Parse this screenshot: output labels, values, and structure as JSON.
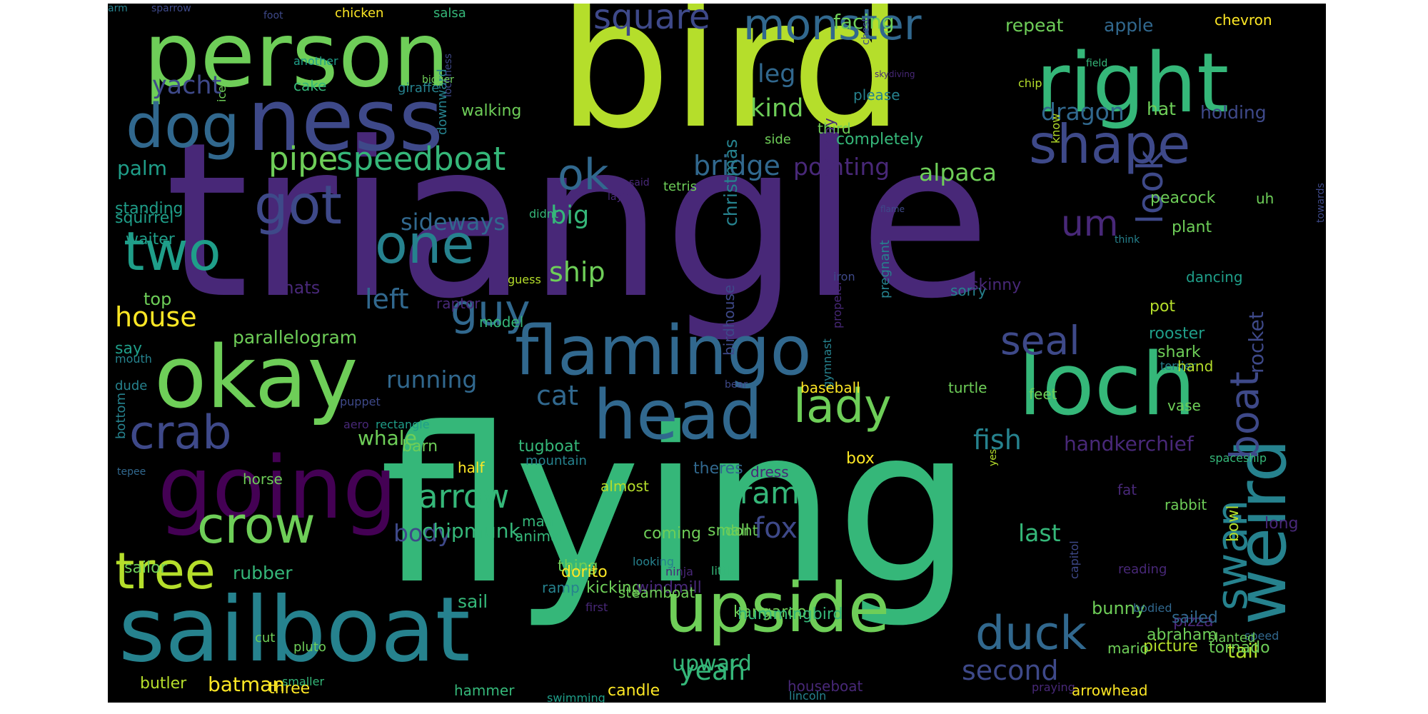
{
  "background": "#000000",
  "palette": {
    "deep_purple": "#440154",
    "purple": "#482878",
    "indigo": "#3e4989",
    "blue": "#31688e",
    "teal_blue": "#26828e",
    "teal": "#1f9e89",
    "green_teal": "#35b779",
    "green": "#6ece58",
    "lime": "#b5de2b",
    "yellow": "#fde725"
  },
  "words": [
    {
      "text": "triangle",
      "color": "#482878"
    },
    {
      "text": "bird",
      "color": "#b5de2b"
    },
    {
      "text": "flying",
      "color": "#35b779"
    },
    {
      "text": "sailboat",
      "color": "#26828e"
    },
    {
      "text": "person",
      "color": "#6ece58"
    },
    {
      "text": "ness",
      "color": "#3e4989"
    },
    {
      "text": "right",
      "color": "#35b779"
    },
    {
      "text": "okay",
      "color": "#6ece58"
    },
    {
      "text": "loch",
      "color": "#35b779"
    },
    {
      "text": "going",
      "color": "#440154"
    },
    {
      "text": "flamingo",
      "color": "#31688e"
    },
    {
      "text": "upside",
      "color": "#6ece58"
    },
    {
      "text": "head",
      "color": "#31688e"
    },
    {
      "text": "weird",
      "color": "#26828e"
    },
    {
      "text": "dog",
      "color": "#31688e"
    },
    {
      "text": "monster",
      "color": "#31688e"
    },
    {
      "text": "square",
      "color": "#3e4989"
    },
    {
      "text": "shape",
      "color": "#3e4989"
    },
    {
      "text": "got",
      "color": "#3e4989"
    },
    {
      "text": "one",
      "color": "#26828e"
    },
    {
      "text": "two",
      "color": "#1f9e89"
    },
    {
      "text": "guy",
      "color": "#31688e"
    },
    {
      "text": "crow",
      "color": "#6ece58"
    },
    {
      "text": "tree",
      "color": "#b5de2b"
    },
    {
      "text": "crab",
      "color": "#3e4989"
    },
    {
      "text": "lady",
      "color": "#6ece58"
    },
    {
      "text": "duck",
      "color": "#31688e"
    },
    {
      "text": "seal",
      "color": "#3e4989"
    },
    {
      "text": "swan",
      "color": "#26828e"
    },
    {
      "text": "boat",
      "color": "#3e4989"
    },
    {
      "text": "look",
      "color": "#3e4989"
    },
    {
      "text": "um",
      "color": "#482878"
    },
    {
      "text": "ok",
      "color": "#31688e"
    },
    {
      "text": "speedboat",
      "color": "#35b779"
    },
    {
      "text": "pipe",
      "color": "#6ece58"
    },
    {
      "text": "house",
      "color": "#fde725"
    },
    {
      "text": "arrow",
      "color": "#35b779"
    },
    {
      "text": "fish",
      "color": "#26828e"
    },
    {
      "text": "yacht",
      "color": "#3e4989"
    },
    {
      "text": "dragon",
      "color": "#31688e"
    },
    {
      "text": "bridge",
      "color": "#31688e"
    },
    {
      "text": "pointing",
      "color": "#482878"
    },
    {
      "text": "alpaca",
      "color": "#6ece58"
    },
    {
      "text": "leg",
      "color": "#31688e"
    },
    {
      "text": "kind",
      "color": "#6ece58"
    },
    {
      "text": "big",
      "color": "#35b779"
    },
    {
      "text": "left",
      "color": "#31688e"
    },
    {
      "text": "ship",
      "color": "#6ece58"
    },
    {
      "text": "sideways",
      "color": "#31688e"
    },
    {
      "text": "cat",
      "color": "#31688e"
    },
    {
      "text": "running",
      "color": "#31688e"
    },
    {
      "text": "palm",
      "color": "#1f9e89"
    },
    {
      "text": "parallelogram",
      "color": "#6ece58"
    },
    {
      "text": "whale",
      "color": "#6ece58"
    },
    {
      "text": "ram",
      "color": "#35b779"
    },
    {
      "text": "fox",
      "color": "#3e4989"
    },
    {
      "text": "body",
      "color": "#3e4989"
    },
    {
      "text": "chipmunk",
      "color": "#35b779"
    },
    {
      "text": "last",
      "color": "#35b779"
    },
    {
      "text": "handkerchief",
      "color": "#482878"
    },
    {
      "text": "rocket",
      "color": "#3e4989"
    },
    {
      "text": "facing",
      "color": "#6ece58"
    },
    {
      "text": "repeat",
      "color": "#6ece58"
    },
    {
      "text": "apple",
      "color": "#31688e"
    },
    {
      "text": "chevron",
      "color": "#fde725"
    },
    {
      "text": "hat",
      "color": "#6ece58"
    },
    {
      "text": "holding",
      "color": "#3e4989"
    },
    {
      "text": "christmas",
      "color": "#26828e"
    },
    {
      "text": "walking",
      "color": "#6ece58"
    },
    {
      "text": "rubber",
      "color": "#35b779"
    },
    {
      "text": "sail",
      "color": "#35b779"
    },
    {
      "text": "yeah",
      "color": "#35b779"
    },
    {
      "text": "second",
      "color": "#3e4989"
    },
    {
      "text": "upward",
      "color": "#35b779"
    },
    {
      "text": "batman",
      "color": "#fde725"
    },
    {
      "text": "bunny",
      "color": "#6ece58"
    },
    {
      "text": "tail",
      "color": "#b5de2b"
    },
    {
      "text": "half",
      "color": "#fde725"
    },
    {
      "text": "small",
      "color": "#6ece58"
    },
    {
      "text": "dont",
      "color": "#6ece58"
    },
    {
      "text": "coming",
      "color": "#6ece58"
    },
    {
      "text": "thing",
      "color": "#6ece58"
    },
    {
      "text": "kicking",
      "color": "#6ece58"
    },
    {
      "text": "windmill",
      "color": "#482878"
    },
    {
      "text": "kangaroo",
      "color": "#6ece58"
    },
    {
      "text": "hummingbird",
      "color": "#35b779"
    },
    {
      "text": "box",
      "color": "#fde725"
    },
    {
      "text": "barn",
      "color": "#6ece58"
    },
    {
      "text": "tugboat",
      "color": "#35b779"
    },
    {
      "text": "horse",
      "color": "#6ece58"
    },
    {
      "text": "model",
      "color": "#35b779"
    },
    {
      "text": "raptor",
      "color": "#482878"
    },
    {
      "text": "thats",
      "color": "#482878"
    },
    {
      "text": "top",
      "color": "#6ece58"
    },
    {
      "text": "waiter",
      "color": "#1f9e89"
    },
    {
      "text": "standing",
      "color": "#1f9e89"
    },
    {
      "text": "squirrel",
      "color": "#1f9e89"
    },
    {
      "text": "say",
      "color": "#1f9e89"
    },
    {
      "text": "mouth",
      "color": "#26828e"
    },
    {
      "text": "dude",
      "color": "#26828e"
    },
    {
      "text": "bottom",
      "color": "#26828e"
    },
    {
      "text": "tepee",
      "color": "#31688e"
    },
    {
      "text": "sailor",
      "color": "#6ece58"
    },
    {
      "text": "butler",
      "color": "#b5de2b"
    },
    {
      "text": "three",
      "color": "#fde725"
    },
    {
      "text": "smaller",
      "color": "#35b779"
    },
    {
      "text": "hammer",
      "color": "#35b779"
    },
    {
      "text": "candle",
      "color": "#fde725"
    },
    {
      "text": "swimming",
      "color": "#1f9e89"
    },
    {
      "text": "houseboat",
      "color": "#482878"
    },
    {
      "text": "lincoln",
      "color": "#26828e"
    },
    {
      "text": "praying",
      "color": "#482878"
    },
    {
      "text": "arrowhead",
      "color": "#fde725"
    },
    {
      "text": "sparrow",
      "color": "#3e4989"
    },
    {
      "text": "foot",
      "color": "#3e4989"
    },
    {
      "text": "chicken",
      "color": "#fde725"
    },
    {
      "text": "salsa",
      "color": "#35b779"
    },
    {
      "text": "chest",
      "color": "#3e4989"
    },
    {
      "text": "another",
      "color": "#1f9e89"
    },
    {
      "text": "cake",
      "color": "#35b779"
    },
    {
      "text": "giraffe",
      "color": "#26828e"
    },
    {
      "text": "downward",
      "color": "#26828e"
    },
    {
      "text": "lochness",
      "color": "#3e4989"
    },
    {
      "text": "bigger",
      "color": "#6ece58"
    },
    {
      "text": "skydiving",
      "color": "#482878"
    },
    {
      "text": "field",
      "color": "#35b779"
    },
    {
      "text": "please",
      "color": "#26828e"
    },
    {
      "text": "chip",
      "color": "#b5de2b"
    },
    {
      "text": "completely",
      "color": "#35b779"
    },
    {
      "text": "third",
      "color": "#6ece58"
    },
    {
      "text": "know",
      "color": "#b5de2b"
    },
    {
      "text": "side",
      "color": "#6ece58"
    },
    {
      "text": "birthday",
      "color": "#482878"
    },
    {
      "text": "tetris",
      "color": "#6ece58"
    },
    {
      "text": "said",
      "color": "#482878"
    },
    {
      "text": "laying",
      "color": "#482878"
    },
    {
      "text": "didnt",
      "color": "#35b779"
    },
    {
      "text": "guess",
      "color": "#b5de2b"
    },
    {
      "text": "flame",
      "color": "#3e4989"
    },
    {
      "text": "towards",
      "color": "#3e4989"
    },
    {
      "text": "uh",
      "color": "#6ece58"
    },
    {
      "text": "peacock",
      "color": "#6ece58"
    },
    {
      "text": "plant",
      "color": "#6ece58"
    },
    {
      "text": "think",
      "color": "#26828e"
    },
    {
      "text": "dancing",
      "color": "#1f9e89"
    },
    {
      "text": "pot",
      "color": "#b5de2b"
    },
    {
      "text": "sorry",
      "color": "#26828e"
    },
    {
      "text": "skinny",
      "color": "#482878"
    },
    {
      "text": "pregnant",
      "color": "#26828e"
    },
    {
      "text": "iron",
      "color": "#3e4989"
    },
    {
      "text": "propeler",
      "color": "#482878"
    },
    {
      "text": "birdhouse",
      "color": "#3e4989"
    },
    {
      "text": "gymnast",
      "color": "#26828e"
    },
    {
      "text": "rooster",
      "color": "#1f9e89"
    },
    {
      "text": "shark",
      "color": "#6ece58"
    },
    {
      "text": "terrier",
      "color": "#26828e"
    },
    {
      "text": "hand",
      "color": "#b5de2b"
    },
    {
      "text": "bear",
      "color": "#3e4989"
    },
    {
      "text": "baseball",
      "color": "#fde725"
    },
    {
      "text": "turtle",
      "color": "#6ece58"
    },
    {
      "text": "vase",
      "color": "#6ece58"
    },
    {
      "text": "feet",
      "color": "#6ece58"
    },
    {
      "text": "puppet",
      "color": "#3e4989"
    },
    {
      "text": "rectangle",
      "color": "#1f9e89"
    },
    {
      "text": "aero",
      "color": "#482878"
    },
    {
      "text": "dress",
      "color": "#482878"
    },
    {
      "text": "mountain",
      "color": "#26828e"
    },
    {
      "text": "almost",
      "color": "#b5de2b"
    },
    {
      "text": "theres",
      "color": "#31688e"
    },
    {
      "text": "spaceship",
      "color": "#35b779"
    },
    {
      "text": "yes",
      "color": "#b5de2b"
    },
    {
      "text": "fat",
      "color": "#482878"
    },
    {
      "text": "rabbit",
      "color": "#6ece58"
    },
    {
      "text": "bowl",
      "color": "#b5de2b"
    },
    {
      "text": "long",
      "color": "#482878"
    },
    {
      "text": "man",
      "color": "#35b779"
    },
    {
      "text": "animal",
      "color": "#35b779"
    },
    {
      "text": "looking",
      "color": "#26828e"
    },
    {
      "text": "ninja",
      "color": "#482878"
    },
    {
      "text": "little",
      "color": "#35b779"
    },
    {
      "text": "dorito",
      "color": "#fde725"
    },
    {
      "text": "steamboat",
      "color": "#6ece58"
    },
    {
      "text": "ramp",
      "color": "#26828e"
    },
    {
      "text": "first",
      "color": "#482878"
    },
    {
      "text": "reading",
      "color": "#482878"
    },
    {
      "text": "capitol",
      "color": "#3e4989"
    },
    {
      "text": "bodied",
      "color": "#31688e"
    },
    {
      "text": "pizza",
      "color": "#482878"
    },
    {
      "text": "sailed",
      "color": "#31688e"
    },
    {
      "text": "speed",
      "color": "#31688e"
    },
    {
      "text": "slanted",
      "color": "#6ece58"
    },
    {
      "text": "cut",
      "color": "#6ece58"
    },
    {
      "text": "pluto",
      "color": "#6ece58"
    },
    {
      "text": "abraham",
      "color": "#6ece58"
    },
    {
      "text": "picture",
      "color": "#b5de2b"
    },
    {
      "text": "tornado",
      "color": "#6ece58"
    },
    {
      "text": "mario",
      "color": "#6ece58"
    },
    {
      "text": "ice",
      "color": "#6ece58"
    },
    {
      "text": "arm",
      "color": "#26828e"
    }
  ]
}
